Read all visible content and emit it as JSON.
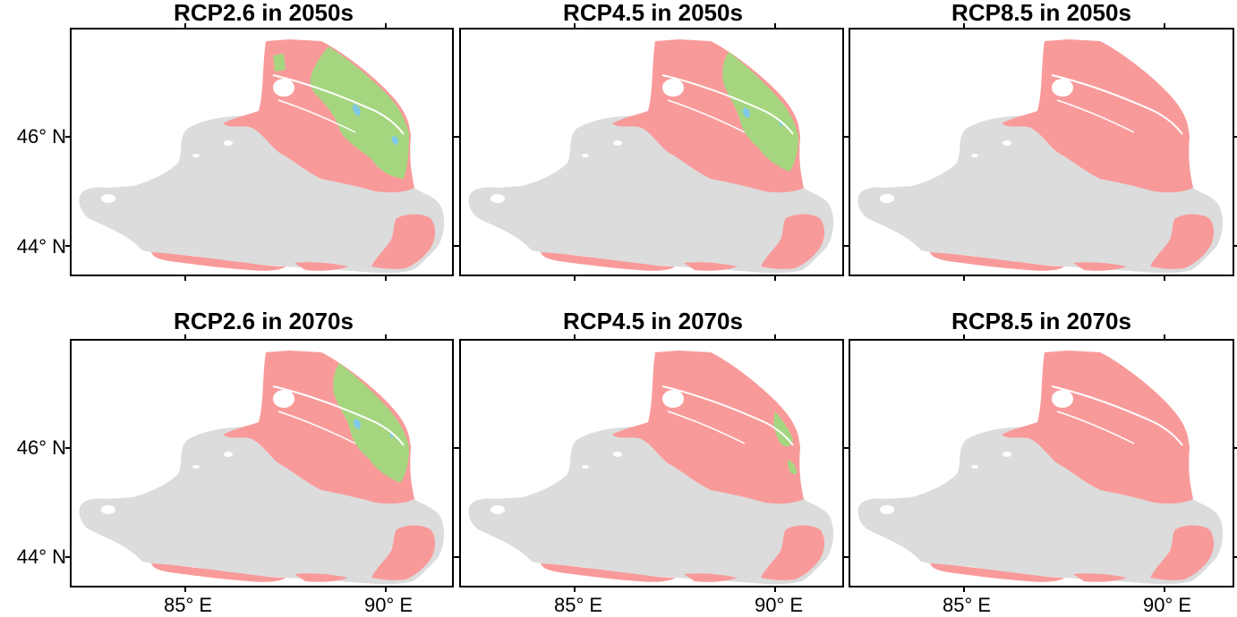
{
  "panels": [
    {
      "title": "RCP2.6 in 2050s",
      "green_level": 3
    },
    {
      "title": "RCP4.5 in 2050s",
      "green_level": 2
    },
    {
      "title": "RCP8.5 in 2050s",
      "green_level": 0
    },
    {
      "title": "RCP2.6 in 2070s",
      "green_level": 2
    },
    {
      "title": "RCP4.5 in 2070s",
      "green_level": 1
    },
    {
      "title": "RCP8.5 in 2070s",
      "green_level": 0
    }
  ],
  "axes": {
    "x_ticks": [
      "85° E",
      "90° E"
    ],
    "y_ticks": [
      "46° N",
      "44° N"
    ]
  },
  "colors": {
    "land_gray": "#dcdcdc",
    "zone_pink": "#f99a9a",
    "zone_green": "#a5d67f",
    "water_blue": "#7fc8e8",
    "frame": "#000000"
  }
}
